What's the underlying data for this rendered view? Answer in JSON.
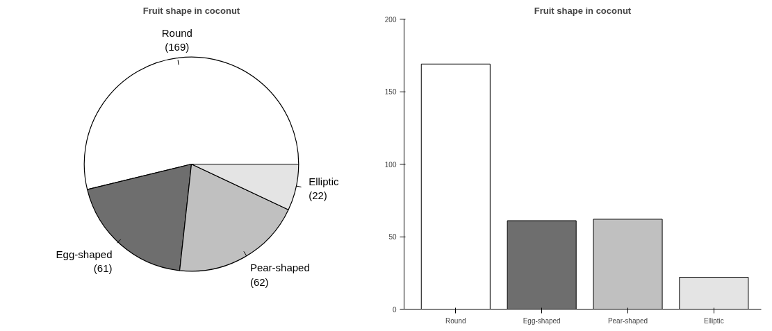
{
  "chart_data": [
    {
      "type": "pie",
      "title": "Fruit shape in coconut",
      "categories": [
        "Round",
        "Egg-shaped",
        "Pear-shaped",
        "Elliptic"
      ],
      "values": [
        169,
        61,
        62,
        22
      ],
      "colors": [
        "#ffffff",
        "#6e6e6e",
        "#c0c0c0",
        "#e4e4e4"
      ],
      "value_labels": [
        "(169)",
        "(61)",
        "(62)",
        "(22)"
      ]
    },
    {
      "type": "bar",
      "title": "Fruit shape in coconut",
      "categories": [
        "Round",
        "Egg-shaped",
        "Pear-shaped",
        "Elliptic"
      ],
      "values": [
        169,
        61,
        62,
        22
      ],
      "colors": [
        "#ffffff",
        "#6e6e6e",
        "#c0c0c0",
        "#e4e4e4"
      ],
      "ylim": [
        0,
        200
      ],
      "yticks": [
        0,
        50,
        100,
        150,
        200
      ],
      "grid": false
    }
  ]
}
